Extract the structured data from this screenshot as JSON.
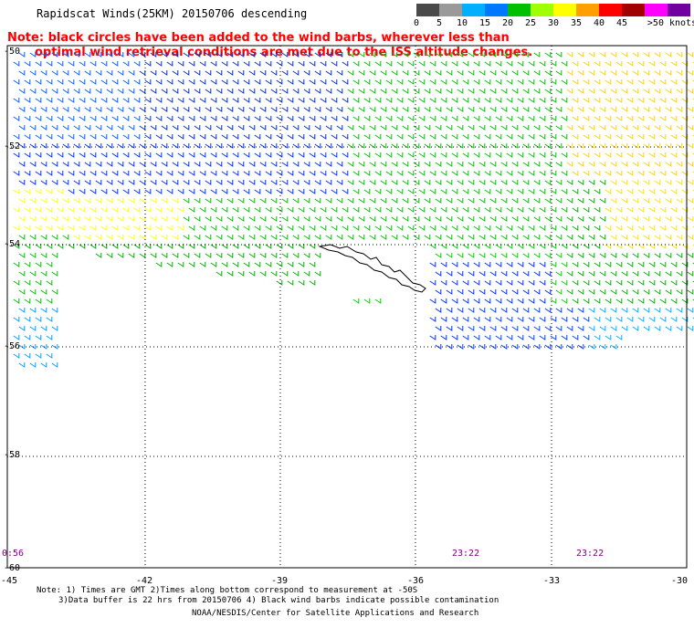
{
  "title": "Rapidscat Winds(25KM) 20150706 descending",
  "note": {
    "line1": "Note: black circles have been added to the wind barbs, wherever less than",
    "line2": "optimal wind retrieval conditions are met due to the ISS altitude changes."
  },
  "legend": {
    "labels": [
      "0",
      "5",
      "10",
      "15",
      "20",
      "25",
      "30",
      "35",
      "40",
      "45",
      ">50 knots"
    ],
    "colors": [
      "#4a4a4a",
      "#9a9a9a",
      "#00b0ff",
      "#0078ff",
      "#00c000",
      "#a0ff00",
      "#ffff00",
      "#ffa000",
      "#ff0000",
      "#a00000",
      "#ff00ff",
      "#7000a0"
    ]
  },
  "axes": {
    "lat_labels": [
      "-50",
      "-52",
      "-54",
      "-56",
      "-58",
      "-60"
    ],
    "lon_labels": [
      "-45",
      "-42",
      "-39",
      "-36",
      "-33",
      "-30"
    ]
  },
  "times": [
    "0:56",
    "23:22",
    "23:22"
  ],
  "footer": {
    "line1": "Note: 1) Times are GMT 2)Times along bottom correspond to measurement at -50S",
    "line2": "3)Data buffer is 22 hrs from 20150706 4) Black wind barbs indicate possible contamination",
    "line3": "NOAA/NESDIS/Center for Satellite Applications and Research"
  }
}
